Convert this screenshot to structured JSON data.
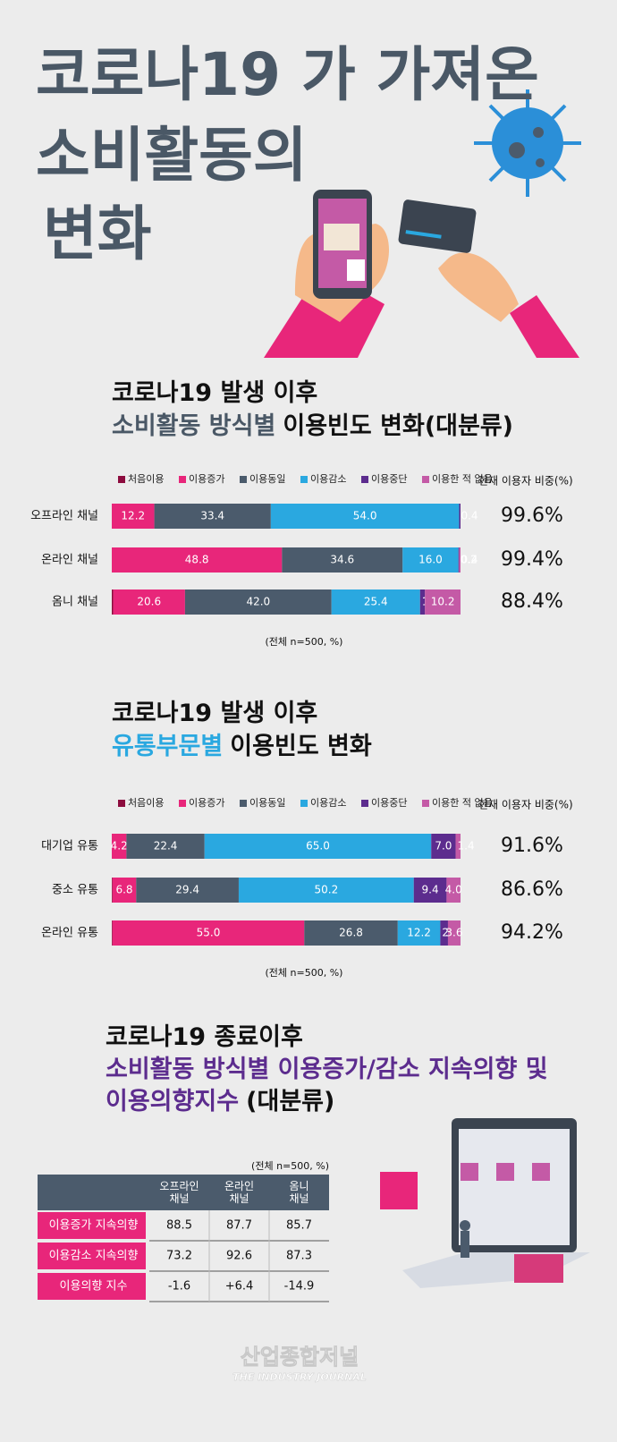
{
  "header": {
    "title_lines": [
      "코로나19 가 가져온",
      "소비활동의",
      "변화"
    ]
  },
  "chart_data": [
    {
      "type": "bar",
      "orientation": "horizontal",
      "stacked": true,
      "title": [
        [
          {
            "text": "코로나19 발생 이후"
          }
        ],
        [
          {
            "text": "소비활동 방식별",
            "color": "#4a5866"
          },
          {
            "text": "이용빈도 변화(대분류)"
          }
        ]
      ],
      "categories": [
        "오프라인 채널",
        "온라인 채널",
        "옴니 채널"
      ],
      "series": [
        {
          "name": "처음이용",
          "color": "#8c0c3e",
          "values": [
            null,
            null,
            0.4
          ],
          "value_labels": [
            null,
            null,
            "0.4"
          ]
        },
        {
          "name": "이용증가",
          "color": "#e8267a",
          "values": [
            12.2,
            48.8,
            20.6
          ],
          "value_labels": [
            "12.2",
            "48.8",
            "20.6"
          ]
        },
        {
          "name": "이용동일",
          "color": "#4b5b6c",
          "values": [
            33.4,
            34.6,
            42.0
          ],
          "value_labels": [
            "33.4",
            "34.6",
            "42.0"
          ]
        },
        {
          "name": "이용감소",
          "color": "#2aa8e0",
          "values": [
            54.0,
            16.0,
            25.4
          ],
          "value_labels": [
            "54.0",
            "16.0",
            "25.4"
          ]
        },
        {
          "name": "이용중단",
          "color": "#5c2c8e",
          "values": [
            0.4,
            0.2,
            1.4
          ],
          "value_labels": [
            "0.4",
            "0.2",
            "1.4"
          ]
        },
        {
          "name": "이용한 적 없음",
          "color": "#c45aa6",
          "values": [
            null,
            0.4,
            10.2
          ],
          "value_labels": [
            null,
            "0.4",
            "10.2"
          ]
        }
      ],
      "share": {
        "title": "현재 이용자 비중(%)",
        "values": [
          99.6,
          99.4,
          88.4
        ],
        "value_labels": [
          "99.6%",
          "99.4%",
          "88.4%"
        ]
      },
      "note": "(전체 n=500, %)"
    },
    {
      "type": "bar",
      "orientation": "horizontal",
      "stacked": true,
      "title": [
        [
          {
            "text": "코로나19 발생 이후"
          }
        ],
        [
          {
            "text": "유통부문별",
            "color": "#2aa8e0"
          },
          {
            "text": "이용빈도 변화"
          }
        ]
      ],
      "categories": [
        "대기업 유통",
        "중소 유통",
        "온라인 유통"
      ],
      "series": [
        {
          "name": "처음이용",
          "color": "#8c0c3e",
          "values": [
            null,
            0.2,
            0.2
          ],
          "value_labels": [
            null,
            "0.2",
            "0.2"
          ]
        },
        {
          "name": "이용증가",
          "color": "#e8267a",
          "values": [
            4.2,
            6.8,
            55.0
          ],
          "value_labels": [
            "4.2",
            "6.8",
            "55.0"
          ]
        },
        {
          "name": "이용동일",
          "color": "#4b5b6c",
          "values": [
            22.4,
            29.4,
            26.8
          ],
          "value_labels": [
            "22.4",
            "29.4",
            "26.8"
          ]
        },
        {
          "name": "이용감소",
          "color": "#2aa8e0",
          "values": [
            65.0,
            50.2,
            12.2
          ],
          "value_labels": [
            "65.0",
            "50.2",
            "12.2"
          ]
        },
        {
          "name": "이용중단",
          "color": "#5c2c8e",
          "values": [
            7.0,
            9.4,
            2.2
          ],
          "value_labels": [
            "7.0",
            "9.4",
            "2.2"
          ]
        },
        {
          "name": "이용한 적 없음",
          "color": "#c45aa6",
          "values": [
            1.4,
            4.0,
            3.6
          ],
          "value_labels": [
            "1.4",
            "4.0",
            "3.6"
          ]
        }
      ],
      "share": {
        "title": "현재 이용자 비중(%)",
        "values": [
          91.6,
          86.6,
          94.2
        ],
        "value_labels": [
          "91.6%",
          "86.6%",
          "94.2%"
        ]
      },
      "note": "(전체 n=500, %)"
    }
  ],
  "table": {
    "title": [
      [
        {
          "text": "코로나19 종료이후"
        }
      ],
      [
        {
          "text": "소비활동 방식별 이용증가/감소 지속의향 및",
          "color": "#5c2c8e"
        }
      ],
      [
        {
          "text": "이용의향지수",
          "color": "#5c2c8e"
        },
        {
          "text": "(대분류)"
        }
      ]
    ],
    "note": "(전체 n=500, %)",
    "columns": [
      "오프라인 채널",
      "온라인 채널",
      "옴니 채널"
    ],
    "rows": [
      [
        "이용증가 지속의향",
        "88.5",
        "87.7",
        "85.7"
      ],
      [
        "이용감소 지속의향",
        "73.2",
        "92.6",
        "87.3"
      ],
      [
        "이용의향 지수",
        "-1.6",
        "+6.4",
        "-14.9"
      ]
    ]
  },
  "footer": {
    "logo": "산업종합저널",
    "logo_sub": "THE INDUSTRY JOURNAL"
  }
}
